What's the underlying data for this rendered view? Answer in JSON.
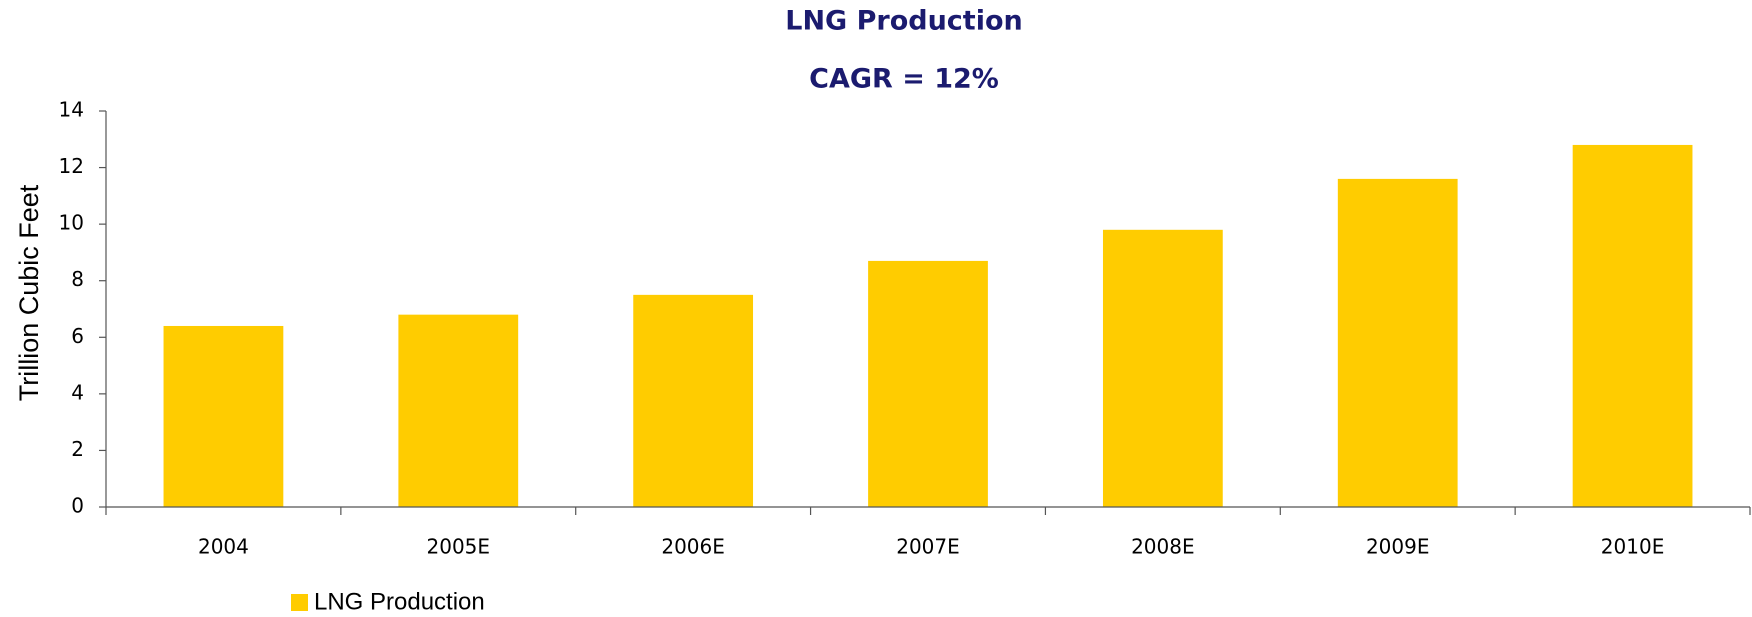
{
  "chart_data": {
    "type": "bar",
    "title": "LNG Production",
    "subtitle": "CAGR = 12%",
    "y_label": "Trillion Cubic Feet",
    "categories": [
      "2004",
      "2005E",
      "2006E",
      "2007E",
      "2008E",
      "2009E",
      "2010E"
    ],
    "series": [
      {
        "name": "LNG Production",
        "color": "#ffcc00",
        "values": [
          6.4,
          6.8,
          7.5,
          8.7,
          9.8,
          11.6,
          12.8
        ]
      }
    ],
    "ylim": [
      0,
      14
    ],
    "yticks": [
      0,
      2,
      4,
      6,
      8,
      10,
      12,
      14
    ],
    "grid": false,
    "legend": "bottom-left"
  }
}
